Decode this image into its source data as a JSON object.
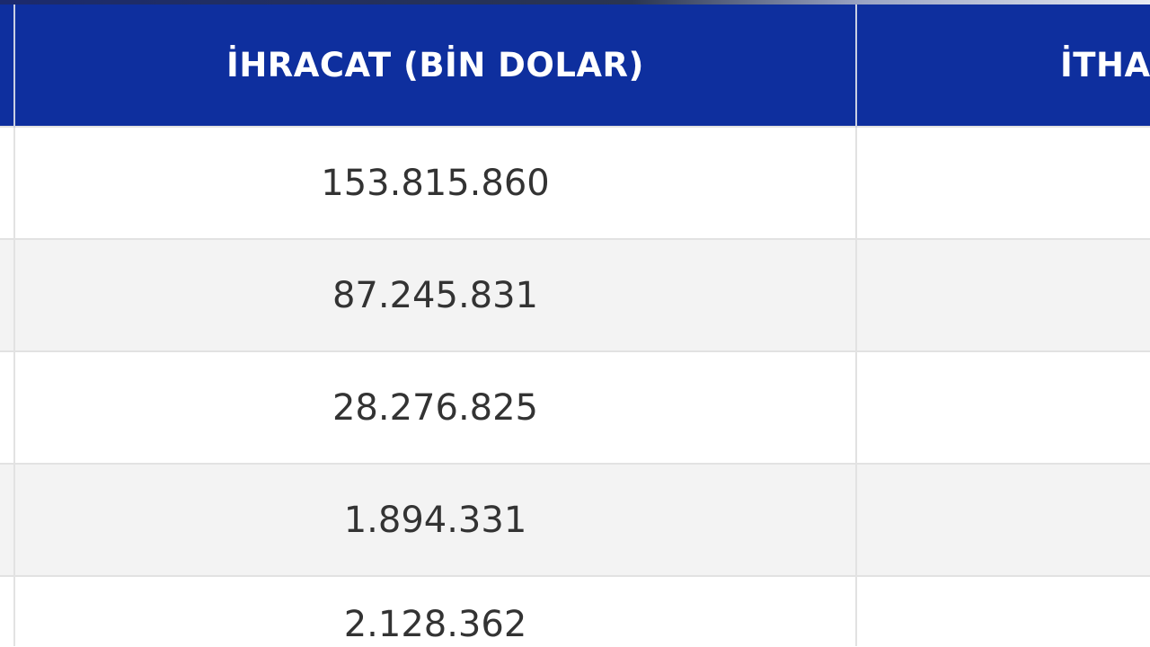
{
  "table": {
    "headers": [
      "",
      "İHRACAT (BİN DOLAR)",
      "İTHA"
    ],
    "rows": [
      {
        "export": "153.815.860"
      },
      {
        "export": "87.245.831"
      },
      {
        "export": "28.276.825"
      },
      {
        "export": "1.894.331"
      },
      {
        "export": "2.128.362"
      }
    ]
  },
  "colors": {
    "header_bg": "#0e2f9e",
    "header_text": "#ffffff",
    "row_alt": "#f3f3f3"
  }
}
